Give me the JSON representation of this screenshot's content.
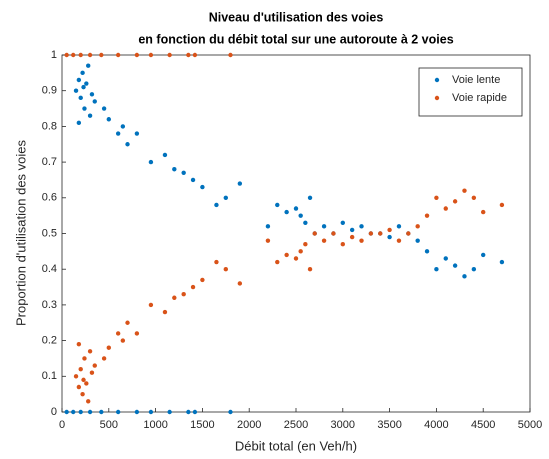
{
  "chart_data": {
    "type": "scatter",
    "title": [
      "Niveau d'utilisation des voies",
      "en fonction du débit total sur une autoroute à 2 voies"
    ],
    "x_label": "Débit total (en Veh/h)",
    "y_label": "Proportion d'utilisation des voies",
    "xlim": [
      0,
      5000
    ],
    "ylim": [
      0,
      1
    ],
    "xticks": [
      0,
      500,
      1000,
      1500,
      2000,
      2500,
      3000,
      3500,
      4000,
      4500,
      5000
    ],
    "yticks": [
      0,
      0.1,
      0.2,
      0.3,
      0.4,
      0.5,
      0.6,
      0.7,
      0.8,
      0.9,
      1
    ],
    "legend": "northeast",
    "x": [
      50,
      120,
      200,
      300,
      420,
      600,
      800,
      950,
      1150,
      1350,
      1420,
      1800,
      150,
      180,
      200,
      220,
      240,
      260,
      280,
      300,
      320,
      180,
      350,
      230,
      450,
      500,
      600,
      650,
      700,
      800,
      950,
      1100,
      1200,
      1300,
      1400,
      1500,
      1650,
      1750,
      1900,
      2200,
      2300,
      2400,
      2500,
      2550,
      2600,
      2650,
      2700,
      2800,
      2900,
      3000,
      3100,
      3200,
      3300,
      3400,
      3500,
      3600,
      3700,
      3800,
      3900,
      4000,
      4100,
      4200,
      4300,
      4400,
      4500,
      4700
    ],
    "series": [
      {
        "name": "Voie lente",
        "color": "#0072bd",
        "values": [
          0,
          0,
          0,
          0,
          0,
          0,
          0,
          0,
          0,
          0,
          0,
          0,
          0.9,
          0.93,
          0.88,
          0.95,
          0.85,
          0.92,
          0.97,
          0.83,
          0.89,
          0.81,
          0.87,
          0.91,
          0.85,
          0.82,
          0.78,
          0.8,
          0.75,
          0.78,
          0.7,
          0.72,
          0.68,
          0.67,
          0.65,
          0.63,
          0.58,
          0.6,
          0.64,
          0.52,
          0.58,
          0.56,
          0.57,
          0.55,
          0.53,
          0.6,
          0.5,
          0.52,
          0.5,
          0.53,
          0.51,
          0.52,
          0.5,
          0.5,
          0.49,
          0.52,
          0.5,
          0.48,
          0.45,
          0.4,
          0.43,
          0.41,
          0.38,
          0.4,
          0.44,
          0.42
        ]
      },
      {
        "name": "Voie rapide",
        "color": "#d95319",
        "values": [
          1,
          1,
          1,
          1,
          1,
          1,
          1,
          1,
          1,
          1,
          1,
          1,
          0.1,
          0.07,
          0.12,
          0.05,
          0.15,
          0.08,
          0.03,
          0.17,
          0.11,
          0.19,
          0.13,
          0.09,
          0.15,
          0.18,
          0.22,
          0.2,
          0.25,
          0.22,
          0.3,
          0.28,
          0.32,
          0.33,
          0.35,
          0.37,
          0.42,
          0.4,
          0.36,
          0.48,
          0.42,
          0.44,
          0.43,
          0.45,
          0.47,
          0.4,
          0.5,
          0.48,
          0.5,
          0.47,
          0.49,
          0.48,
          0.5,
          0.5,
          0.51,
          0.48,
          0.5,
          0.52,
          0.55,
          0.6,
          0.57,
          0.59,
          0.62,
          0.6,
          0.56,
          0.58
        ]
      }
    ]
  }
}
